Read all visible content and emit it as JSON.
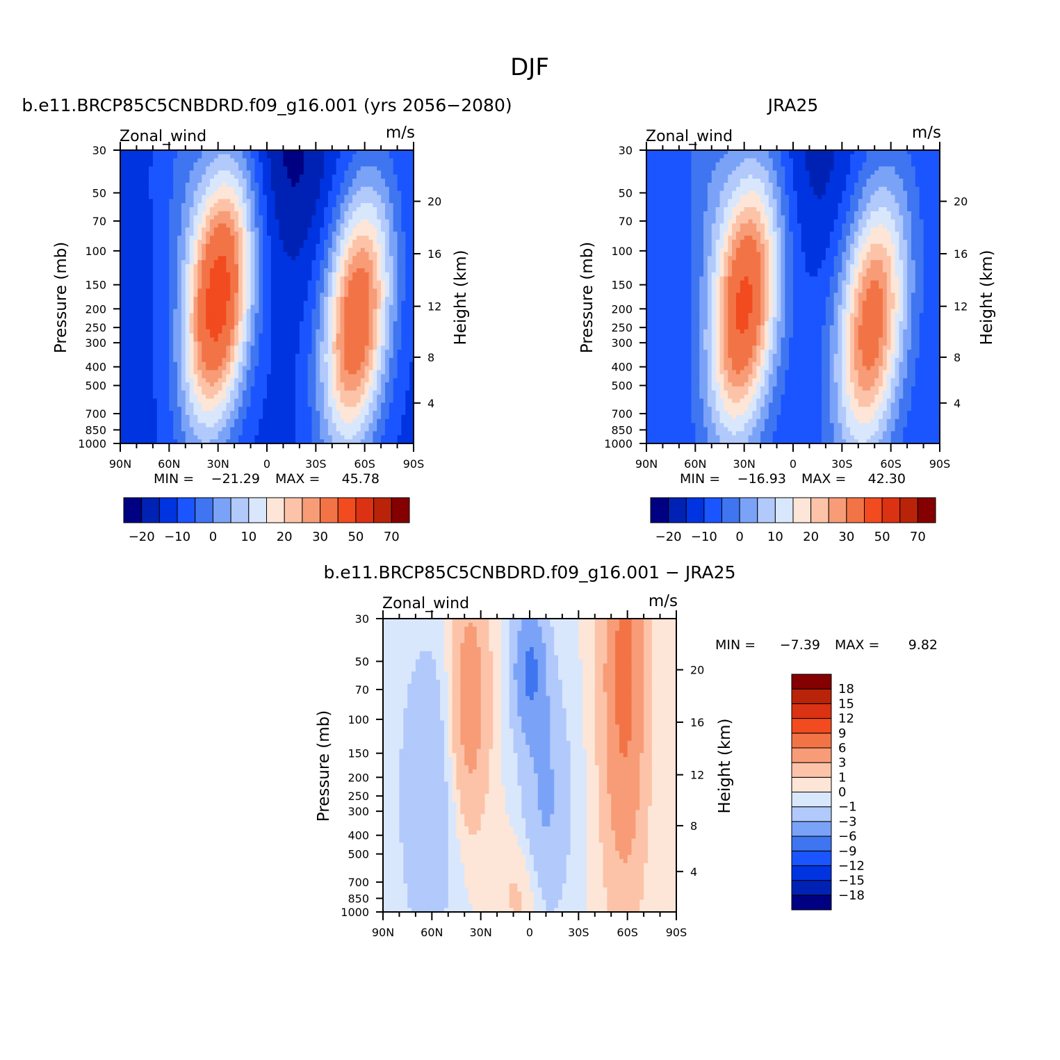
{
  "figure": {
    "title": "DJF"
  },
  "colorbar_main": {
    "colors": [
      "#000082",
      "#0022b4",
      "#0034e0",
      "#1a55ff",
      "#3f75f0",
      "#7aa3f8",
      "#b1c9fb",
      "#d9e7fc",
      "#fde6d7",
      "#fcc3a8",
      "#f79c77",
      "#f27446",
      "#f14b1f",
      "#da3212",
      "#b92309",
      "#850000"
    ],
    "labels": [
      "−20",
      "−10",
      "0",
      "10",
      "20",
      "30",
      "50",
      "70"
    ]
  },
  "colorbar_diff": {
    "colors": [
      "#000082",
      "#0022b4",
      "#0034e0",
      "#1a55ff",
      "#3f75f0",
      "#7aa3f8",
      "#b1c9fb",
      "#d9e7fc",
      "#fde6d7",
      "#fcc3a8",
      "#f79c77",
      "#f27446",
      "#f14b1f",
      "#da3212",
      "#b92309",
      "#850000"
    ],
    "labels": [
      "18",
      "15",
      "12",
      "9",
      "6",
      "3",
      "1",
      "0",
      "−1",
      "−3",
      "−6",
      "−9",
      "−12",
      "−15",
      "−18"
    ]
  },
  "chart_data": [
    {
      "type": "heatmap",
      "title": "b.e11.BRCP85C5CNBDRD.f09_g16.001 (yrs 2056−2080)",
      "left_label": "Zonal_wind",
      "right_label": "m/s",
      "xlabel": "",
      "ylabel": "Pressure (mb)",
      "y2label": "Height (km)",
      "x_ticks": [
        "90N",
        "60N",
        "30N",
        "0",
        "30S",
        "60S",
        "90S"
      ],
      "y_ticks": [
        "30",
        "50",
        "70",
        "100",
        "150",
        "200",
        "250",
        "300",
        "400",
        "500",
        "700",
        "850",
        "1000"
      ],
      "y2_ticks": [
        "20",
        "16",
        "12",
        "8",
        "4"
      ],
      "min_label": "MIN =",
      "min_value": "−21.29",
      "max_label": "MAX =",
      "max_value": "45.78",
      "jets": [
        {
          "lat": 30,
          "p": 175,
          "peak": 45.78
        },
        {
          "lat": -55,
          "p": 230,
          "peak": 38
        }
      ],
      "min": -21.29
    },
    {
      "type": "heatmap",
      "title": "JRA25",
      "left_label": "Zonal_wind",
      "right_label": "m/s",
      "xlabel": "",
      "ylabel": "Pressure (mb)",
      "y2label": "Height (km)",
      "x_ticks": [
        "90N",
        "60N",
        "30N",
        "0",
        "30S",
        "60S",
        "90S"
      ],
      "y_ticks": [
        "30",
        "50",
        "70",
        "100",
        "150",
        "200",
        "250",
        "300",
        "400",
        "500",
        "700",
        "850",
        "1000"
      ],
      "y2_ticks": [
        "20",
        "16",
        "12",
        "8",
        "4"
      ],
      "min_label": "MIN =",
      "min_value": "−16.93",
      "max_label": "MAX =",
      "max_value": "42.30",
      "jets": [
        {
          "lat": 30,
          "p": 190,
          "peak": 42.3
        },
        {
          "lat": -48,
          "p": 240,
          "peak": 35
        }
      ],
      "min": -16.93
    },
    {
      "type": "heatmap",
      "title": "b.e11.BRCP85C5CNBDRD.f09_g16.001 − JRA25",
      "left_label": "Zonal_wind",
      "right_label": "m/s",
      "xlabel": "",
      "ylabel": "Pressure (mb)",
      "y2label": "Height (km)",
      "x_ticks": [
        "90N",
        "60N",
        "30N",
        "0",
        "30S",
        "60S",
        "90S"
      ],
      "y_ticks": [
        "30",
        "50",
        "70",
        "100",
        "150",
        "200",
        "250",
        "300",
        "400",
        "500",
        "700",
        "850",
        "1000"
      ],
      "y2_ticks": [
        "20",
        "16",
        "12",
        "8",
        "4"
      ],
      "min_label": "MIN =",
      "min_value": "−7.39",
      "max_label": "MAX =",
      "max_value": "9.82",
      "min": -7.39,
      "max": 9.82
    }
  ]
}
